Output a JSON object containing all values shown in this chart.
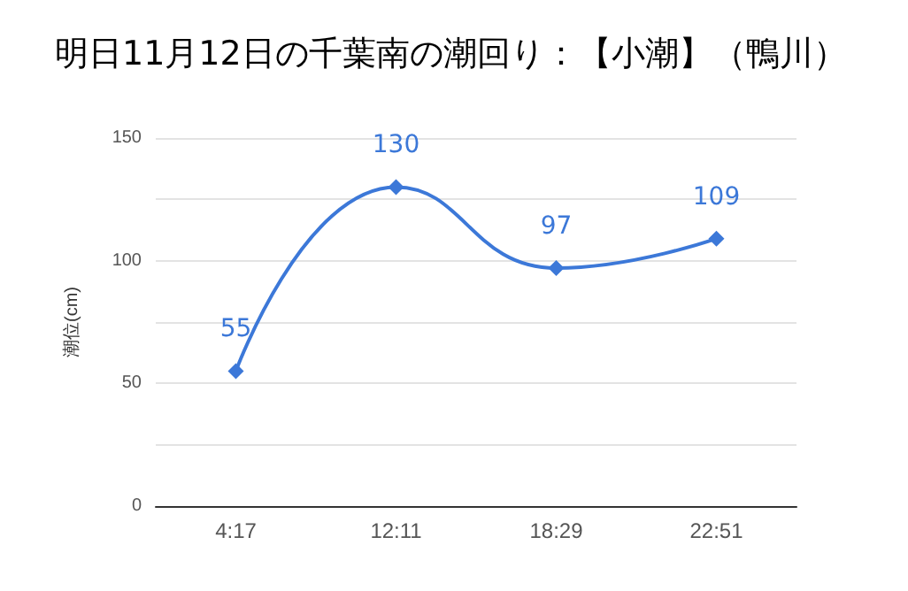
{
  "chart_data": {
    "type": "line",
    "title": "明日11月12日の千葉南の潮回り：【小潮】（鴨川）",
    "ylabel": "潮位(cm)",
    "categories": [
      "4:17",
      "12:11",
      "18:29",
      "22:51"
    ],
    "series": [
      {
        "color": "#3c78d8",
        "values": [
          55,
          130,
          97,
          109
        ]
      }
    ],
    "ylim": [
      0,
      150
    ],
    "yticks": [
      0,
      {
        "value": 25,
        "label": null
      },
      50,
      {
        "value": 75,
        "label": null
      },
      100,
      {
        "value": 125,
        "label": null
      },
      150
    ],
    "grid": true,
    "marker": "diamond",
    "line_style": "solid",
    "data_labels": true
  }
}
